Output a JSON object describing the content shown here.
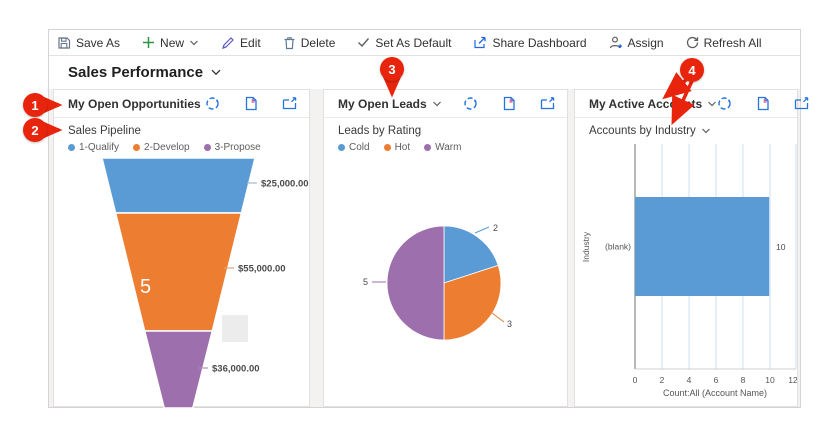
{
  "toolbar": {
    "items": [
      {
        "label": "Save As"
      },
      {
        "label": "New"
      },
      {
        "label": "Edit"
      },
      {
        "label": "Delete"
      },
      {
        "label": "Set As Default"
      },
      {
        "label": "Share Dashboard"
      },
      {
        "label": "Assign"
      },
      {
        "label": "Refresh All"
      }
    ]
  },
  "page": {
    "title": "Sales Performance"
  },
  "panels": [
    {
      "title": "My Open Opportunities",
      "chart_title": "Sales Pipeline"
    },
    {
      "title": "My Open Leads",
      "chart_title": "Leads by Rating"
    },
    {
      "title": "My Active Accounts",
      "chart_title": "Accounts by Industry"
    }
  ],
  "chart_data": [
    {
      "type": "funnel",
      "title": "Sales Pipeline",
      "categories": [
        "1-Qualify",
        "2-Develop",
        "3-Propose"
      ],
      "values": [
        25000,
        55000,
        36000
      ],
      "value_labels": [
        "$25,000.00",
        "$55,000.00",
        "$36,000.00"
      ],
      "segment_count_label": "5",
      "colors": [
        "#5B9BD5",
        "#ED7D31",
        "#9E6FAD"
      ],
      "legend_position": "top"
    },
    {
      "type": "pie",
      "title": "Leads by Rating",
      "categories": [
        "Cold",
        "Hot",
        "Warm"
      ],
      "values": [
        2,
        3,
        5
      ],
      "value_labels": [
        "2",
        "3",
        "5"
      ],
      "colors": [
        "#5B9BD5",
        "#ED7D31",
        "#9E6FAD"
      ],
      "start_angle_deg": -90,
      "direction": "clockwise",
      "legend_position": "top"
    },
    {
      "type": "bar",
      "orientation": "horizontal",
      "title": "Accounts by Industry",
      "categories": [
        "(blank)"
      ],
      "values": [
        10
      ],
      "value_labels": [
        "10"
      ],
      "xlabel": "Count:All (Account Name)",
      "ylabel": "Industry",
      "xlim": [
        0,
        12
      ],
      "xticks": [
        "0",
        "2",
        "4",
        "6",
        "8",
        "10",
        "12"
      ],
      "bar_color": "#5B9BD5",
      "grid": true
    }
  ],
  "annotations": {
    "badges": [
      {
        "number": "1"
      },
      {
        "number": "2"
      },
      {
        "number": "3"
      },
      {
        "number": "4"
      }
    ],
    "color": "#E8240D"
  },
  "colors": {
    "accent_blue": "#2574DB",
    "badge_red": "#E8240D",
    "funnel_blue": "#5B9BD5",
    "funnel_orange": "#ED7D31",
    "funnel_purple": "#9E6FAD",
    "gridline_blue": "#D9E8F5"
  }
}
